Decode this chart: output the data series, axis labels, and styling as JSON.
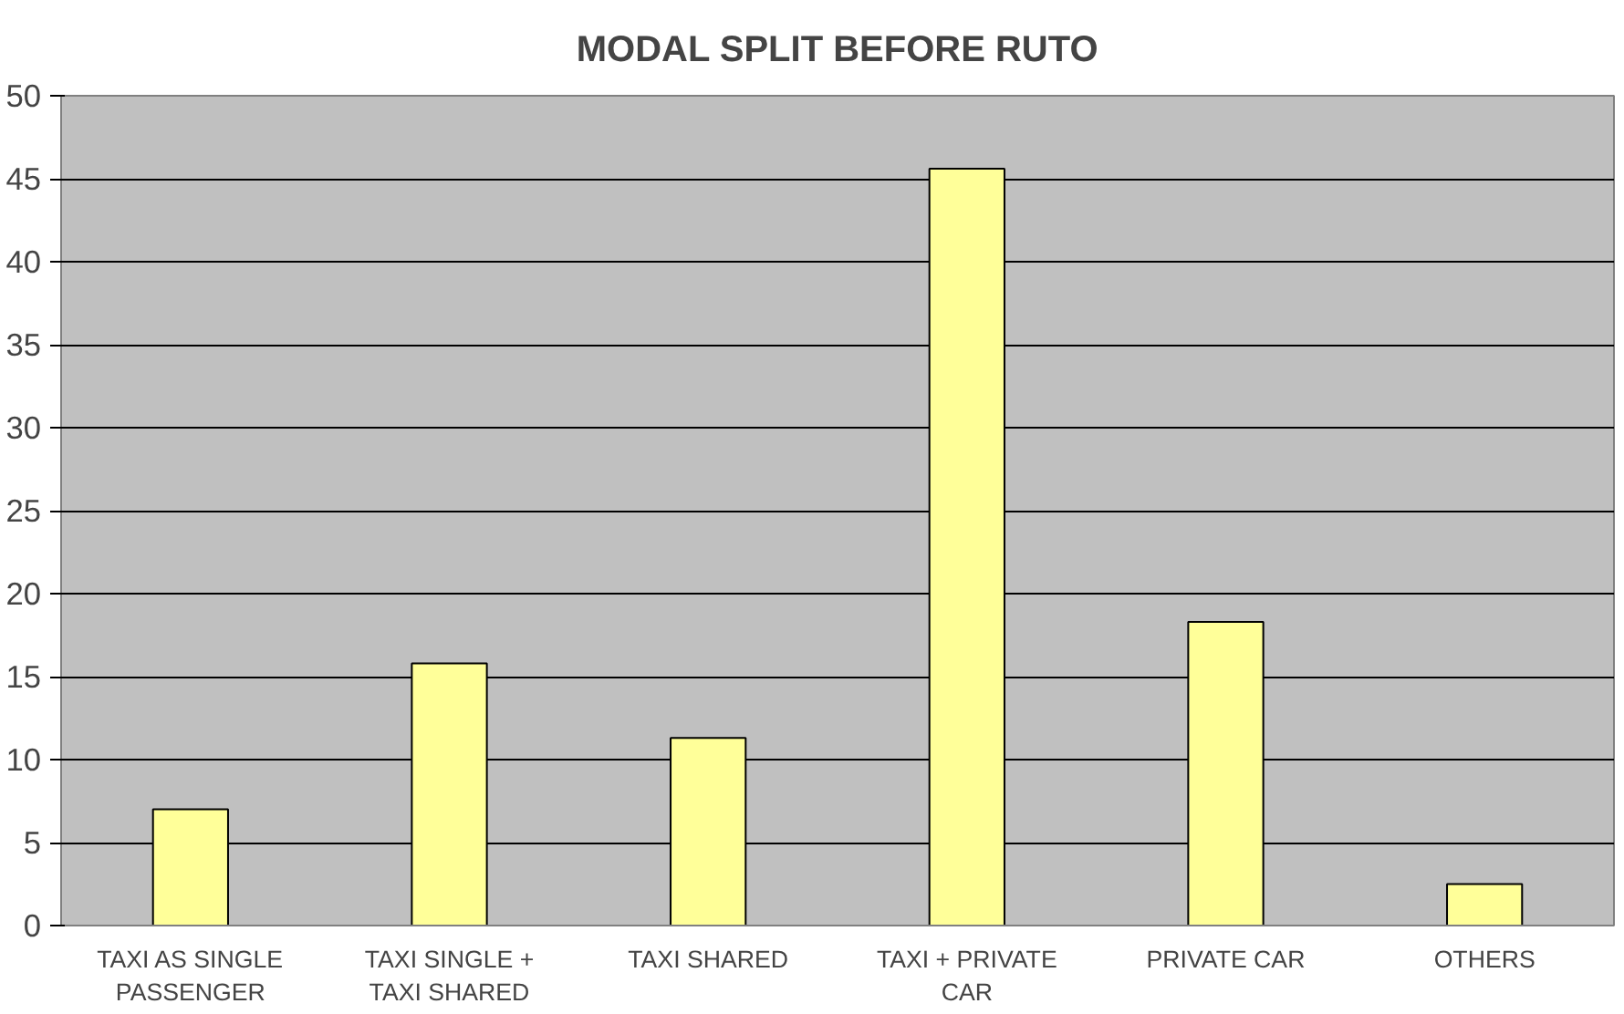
{
  "chart_data": {
    "type": "bar",
    "title": "MODAL SPLIT BEFORE RUTO",
    "categories": [
      "TAXI AS SINGLE PASSENGER",
      "TAXI SINGLE + TAXI SHARED",
      "TAXI SHARED",
      "TAXI + PRIVATE CAR",
      "PRIVATE CAR",
      "OTHERS"
    ],
    "values": [
      7,
      15.8,
      11.3,
      45.6,
      18.3,
      2.5
    ],
    "color": "#ffff99",
    "ylim": [
      0,
      50
    ],
    "yticks": [
      0,
      5,
      10,
      15,
      20,
      25,
      30,
      35,
      40,
      45,
      50
    ],
    "grid": "y"
  }
}
